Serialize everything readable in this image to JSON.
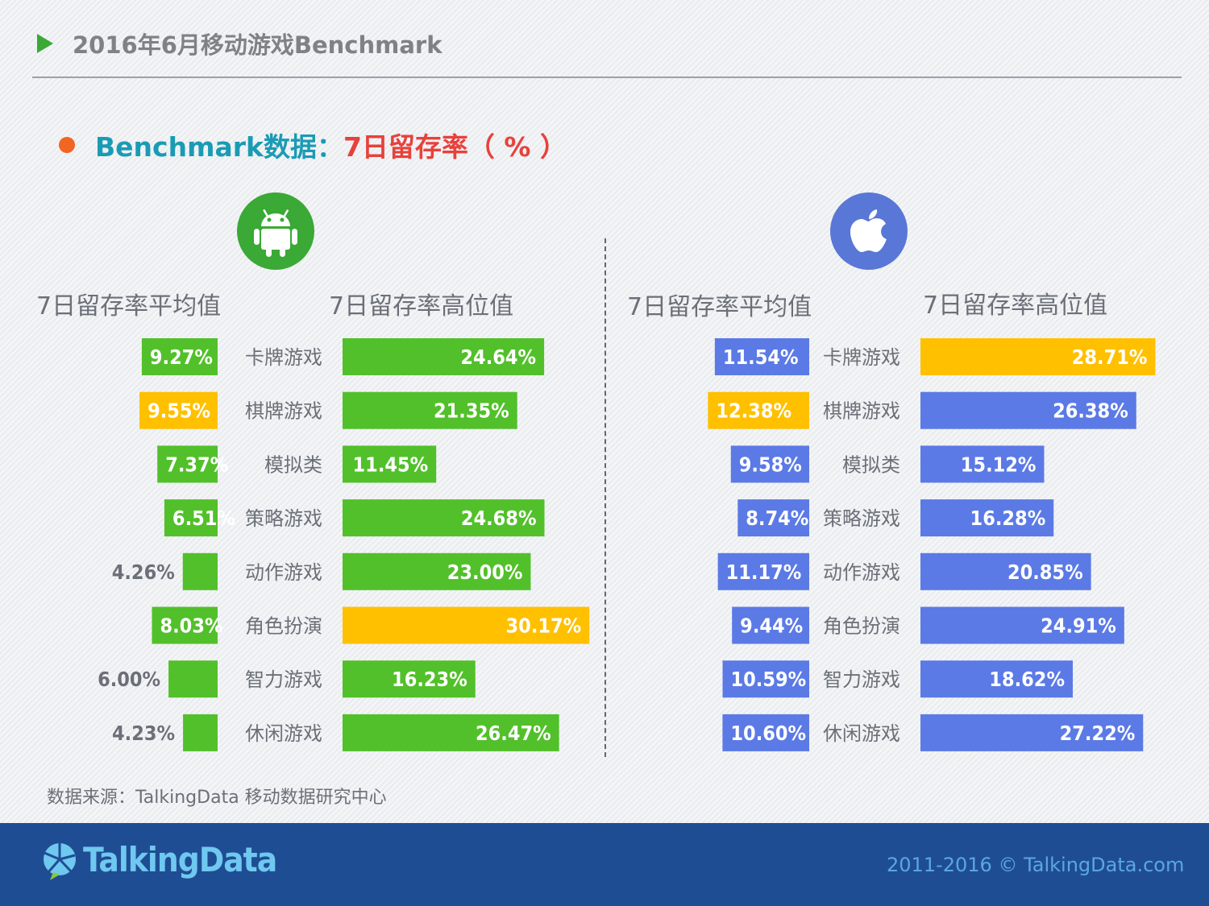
{
  "page_title": "2016年6月移动游戏Benchmark",
  "subtitle_part1": "Benchmark数据：",
  "subtitle_part2": "7日留存率（ % ）",
  "source_text": "数据来源：TalkingData 移动数据研究中心",
  "footer": {
    "brand": "TalkingData",
    "copyright": "2011-2016 © TalkingData.com"
  },
  "colors": {
    "green": "#52c02a",
    "yellow": "#ffc000",
    "blue": "#5b7ae5",
    "label_text": "#6b7078"
  },
  "icons": [
    "android-icon",
    "apple-icon"
  ],
  "chart_data": [
    {
      "type": "bar",
      "platform": "android",
      "categories": [
        "卡牌游戏",
        "棋牌游戏",
        "模拟类",
        "策略游戏",
        "动作游戏",
        "角色扮演",
        "智力游戏",
        "休闲游戏"
      ],
      "series": [
        {
          "name": "7日留存率平均值",
          "values": [
            9.27,
            9.55,
            7.37,
            6.51,
            4.26,
            8.03,
            6.0,
            4.23
          ],
          "labels": [
            "9.27%",
            "9.55%",
            "7.37%",
            "6.51%",
            "4.26%",
            "8.03%",
            "6.00%",
            "4.23%"
          ],
          "highlight_index": 1
        },
        {
          "name": "7日留存率高位值",
          "values": [
            24.64,
            21.35,
            11.45,
            24.68,
            23.0,
            30.17,
            16.23,
            26.47
          ],
          "labels": [
            "24.64%",
            "21.35%",
            "11.45%",
            "24.68%",
            "23.00%",
            "30.17%",
            "16.23%",
            "26.47%"
          ],
          "highlight_index": 5
        }
      ]
    },
    {
      "type": "bar",
      "platform": "ios",
      "categories": [
        "卡牌游戏",
        "棋牌游戏",
        "模拟类",
        "策略游戏",
        "动作游戏",
        "角色扮演",
        "智力游戏",
        "休闲游戏"
      ],
      "series": [
        {
          "name": "7日留存率平均值",
          "values": [
            11.54,
            12.38,
            9.58,
            8.74,
            11.17,
            9.44,
            10.59,
            10.6
          ],
          "labels": [
            "11.54%",
            "12.38%",
            "9.58%",
            "8.74%",
            "11.17%",
            "9.44%",
            "10.59%",
            "10.60%"
          ],
          "highlight_index": 1
        },
        {
          "name": "7日留存率高位值",
          "values": [
            28.71,
            26.38,
            15.12,
            16.28,
            20.85,
            24.91,
            18.62,
            27.22
          ],
          "labels": [
            "28.71%",
            "26.38%",
            "15.12%",
            "16.28%",
            "20.85%",
            "24.91%",
            "18.62%",
            "27.22%"
          ],
          "highlight_index": 0
        }
      ]
    }
  ]
}
